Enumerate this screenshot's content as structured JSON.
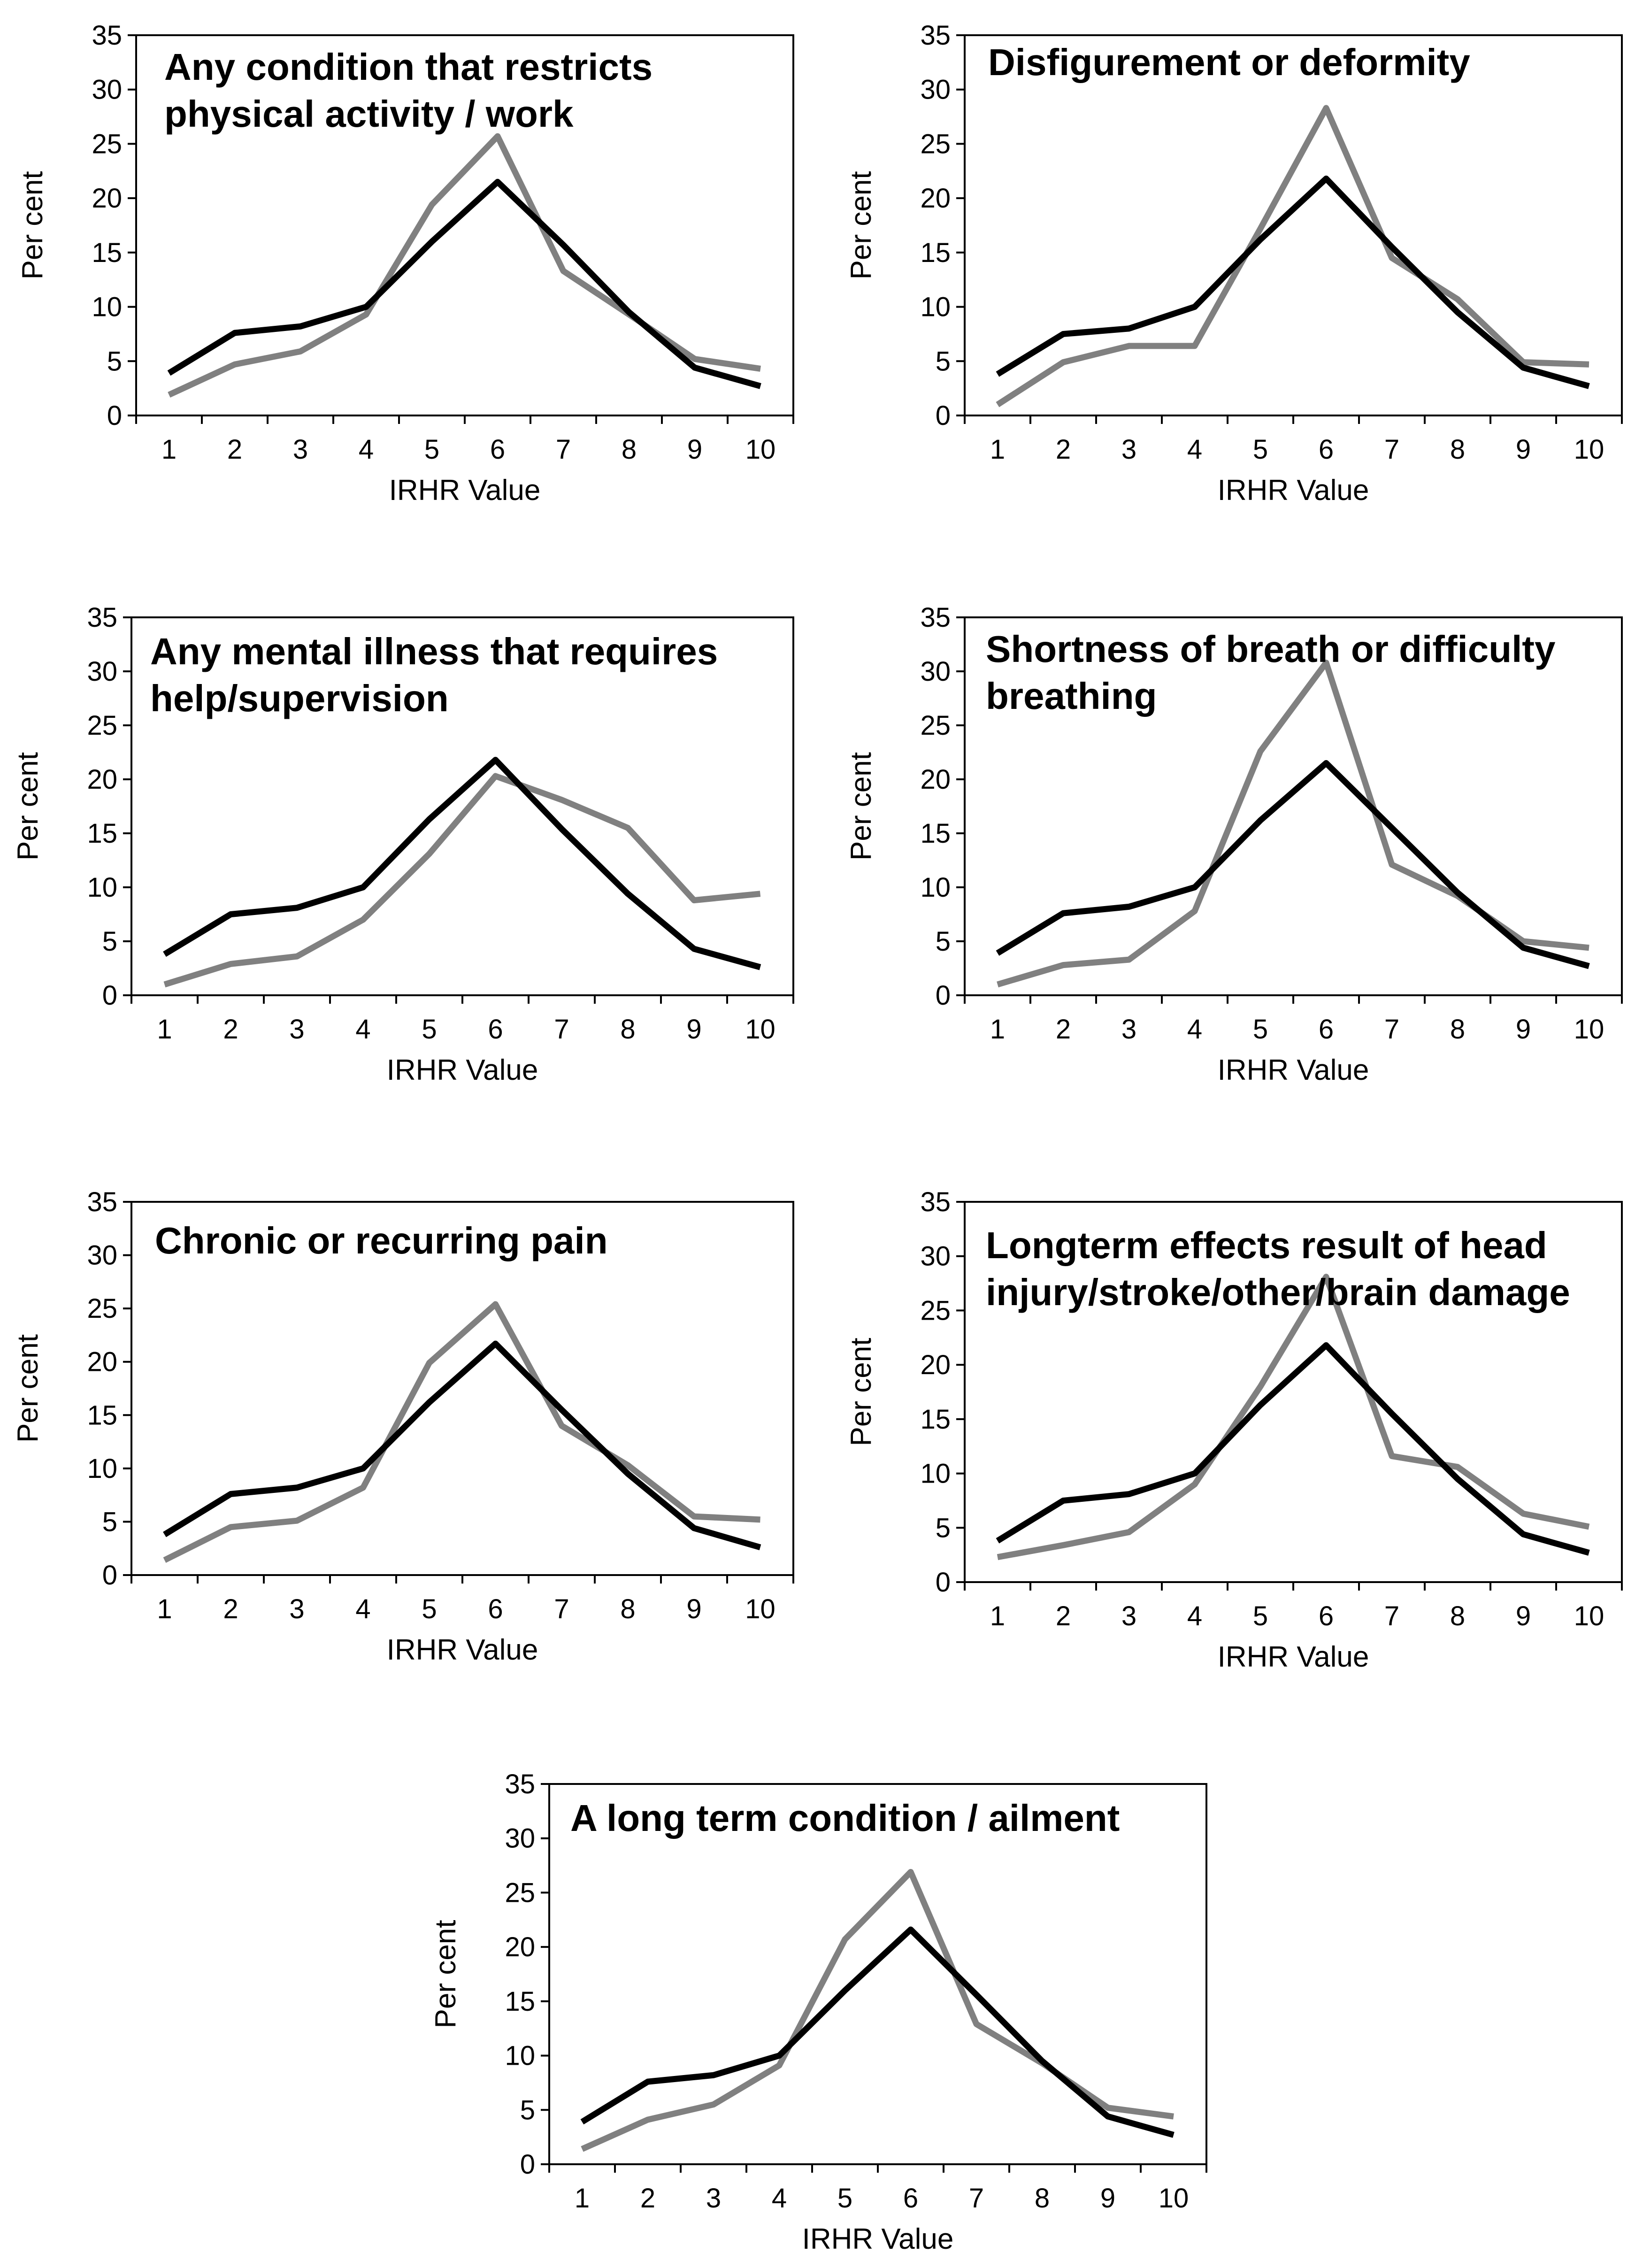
{
  "colors": {
    "series_a": "#000000",
    "series_b": "#808080",
    "axis": "#000000"
  },
  "chart_data": [
    {
      "type": "line",
      "title_lines": [
        "Any condition that restricts",
        "physical activity / work"
      ],
      "xlabel": "IRHR Value",
      "ylabel": "Per cent",
      "categories": [
        "1",
        "2",
        "3",
        "4",
        "5",
        "6",
        "7",
        "8",
        "9",
        "10"
      ],
      "ylim": [
        0,
        35
      ],
      "yticks": [
        "0",
        "5",
        "10",
        "15",
        "20",
        "25",
        "30",
        "35"
      ],
      "grid": false,
      "series": [
        {
          "name": "black",
          "color": "#000000",
          "values": [
            3.9,
            7.6,
            8.2,
            10.0,
            16.0,
            21.5,
            15.7,
            9.5,
            4.4,
            2.7
          ]
        },
        {
          "name": "grey",
          "color": "#808080",
          "values": [
            1.9,
            4.7,
            5.9,
            9.3,
            19.4,
            25.7,
            13.3,
            9.3,
            5.2,
            4.3
          ]
        }
      ]
    },
    {
      "type": "line",
      "title_lines": [
        "Disfigurement or deformity"
      ],
      "xlabel": "IRHR Value",
      "ylabel": "Per cent",
      "categories": [
        "1",
        "2",
        "3",
        "4",
        "5",
        "6",
        "7",
        "8",
        "9",
        "10"
      ],
      "ylim": [
        0,
        35
      ],
      "yticks": [
        "0",
        "5",
        "10",
        "15",
        "20",
        "25",
        "30",
        "35"
      ],
      "grid": false,
      "series": [
        {
          "name": "black",
          "color": "#000000",
          "values": [
            3.8,
            7.5,
            8.0,
            10.0,
            16.2,
            21.8,
            15.5,
            9.5,
            4.4,
            2.7
          ]
        },
        {
          "name": "grey",
          "color": "#808080",
          "values": [
            1.0,
            4.9,
            6.4,
            6.4,
            17.2,
            28.3,
            14.5,
            10.7,
            4.9,
            4.7
          ]
        }
      ]
    },
    {
      "type": "line",
      "title_lines": [
        "Any mental illness that requires",
        "help/supervision"
      ],
      "xlabel": "IRHR Value",
      "ylabel": "Per cent",
      "categories": [
        "1",
        "2",
        "3",
        "4",
        "5",
        "6",
        "7",
        "8",
        "9",
        "10"
      ],
      "ylim": [
        0,
        35
      ],
      "yticks": [
        "0",
        "5",
        "10",
        "15",
        "20",
        "25",
        "30",
        "35"
      ],
      "grid": false,
      "series": [
        {
          "name": "black",
          "color": "#000000",
          "values": [
            3.8,
            7.5,
            8.1,
            10.0,
            16.3,
            21.8,
            15.4,
            9.4,
            4.3,
            2.6
          ]
        },
        {
          "name": "grey",
          "color": "#808080",
          "values": [
            1.0,
            2.9,
            3.6,
            7.0,
            13.1,
            20.3,
            18.1,
            15.5,
            8.8,
            9.4
          ]
        }
      ]
    },
    {
      "type": "line",
      "title_lines": [
        "Shortness of breath or difficulty",
        "breathing"
      ],
      "xlabel": "IRHR Value",
      "ylabel": "Per cent",
      "categories": [
        "1",
        "2",
        "3",
        "4",
        "5",
        "6",
        "7",
        "8",
        "9",
        "10"
      ],
      "ylim": [
        0,
        35
      ],
      "yticks": [
        "0",
        "5",
        "10",
        "15",
        "20",
        "25",
        "30",
        "35"
      ],
      "grid": false,
      "series": [
        {
          "name": "black",
          "color": "#000000",
          "values": [
            3.9,
            7.6,
            8.2,
            10.0,
            16.2,
            21.5,
            15.5,
            9.5,
            4.4,
            2.7
          ]
        },
        {
          "name": "grey",
          "color": "#808080",
          "values": [
            1.0,
            2.8,
            3.3,
            7.8,
            22.6,
            30.8,
            12.1,
            9.2,
            5.0,
            4.4
          ]
        }
      ]
    },
    {
      "type": "line",
      "title_lines": [
        "Chronic or recurring pain"
      ],
      "xlabel": "IRHR Value",
      "ylabel": "Per cent",
      "categories": [
        "1",
        "2",
        "3",
        "4",
        "5",
        "6",
        "7",
        "8",
        "9",
        "10"
      ],
      "ylim": [
        0,
        35
      ],
      "yticks": [
        "0",
        "5",
        "10",
        "15",
        "20",
        "25",
        "30",
        "35"
      ],
      "grid": false,
      "series": [
        {
          "name": "black",
          "color": "#000000",
          "values": [
            3.8,
            7.6,
            8.2,
            10.0,
            16.2,
            21.7,
            15.5,
            9.5,
            4.4,
            2.6
          ]
        },
        {
          "name": "grey",
          "color": "#808080",
          "values": [
            1.4,
            4.5,
            5.1,
            8.2,
            19.9,
            25.4,
            14.0,
            10.3,
            5.5,
            5.2
          ]
        }
      ]
    },
    {
      "type": "line",
      "title_lines": [
        "Longterm effects result of head",
        "injury/stroke/other/brain damage"
      ],
      "xlabel": "IRHR Value",
      "ylabel": "Per cent",
      "categories": [
        "1",
        "2",
        "3",
        "4",
        "5",
        "6",
        "7",
        "8",
        "9",
        "10"
      ],
      "ylim": [
        0,
        35
      ],
      "yticks": [
        "0",
        "5",
        "10",
        "15",
        "20",
        "25",
        "30",
        "35"
      ],
      "grid": false,
      "series": [
        {
          "name": "black",
          "color": "#000000",
          "values": [
            3.8,
            7.5,
            8.1,
            10.0,
            16.3,
            21.8,
            15.5,
            9.5,
            4.4,
            2.7
          ]
        },
        {
          "name": "grey",
          "color": "#808080",
          "values": [
            2.3,
            3.4,
            4.6,
            9.0,
            18.0,
            28.1,
            11.6,
            10.6,
            6.3,
            5.1
          ]
        }
      ]
    },
    {
      "type": "line",
      "title_lines": [
        "A long term condition / ailment"
      ],
      "xlabel": "IRHR Value",
      "ylabel": "Per cent",
      "categories": [
        "1",
        "2",
        "3",
        "4",
        "5",
        "6",
        "7",
        "8",
        "9",
        "10"
      ],
      "ylim": [
        0,
        35
      ],
      "yticks": [
        "0",
        "5",
        "10",
        "15",
        "20",
        "25",
        "30",
        "35"
      ],
      "grid": false,
      "series": [
        {
          "name": "black",
          "color": "#000000",
          "values": [
            3.9,
            7.6,
            8.2,
            10.0,
            16.0,
            21.6,
            15.6,
            9.5,
            4.4,
            2.7
          ]
        },
        {
          "name": "grey",
          "color": "#808080",
          "values": [
            1.4,
            4.1,
            5.5,
            9.1,
            20.7,
            26.9,
            12.9,
            9.3,
            5.2,
            4.4
          ]
        }
      ]
    }
  ]
}
